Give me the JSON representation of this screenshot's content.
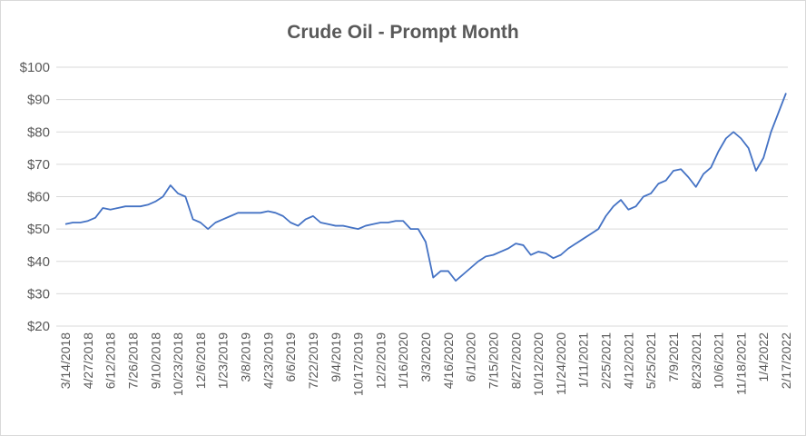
{
  "chart_data": {
    "type": "line",
    "title": "Crude Oil - Prompt Month",
    "categories": [
      "3/14/2018",
      null,
      null,
      "4/27/2018",
      null,
      null,
      "6/12/2018",
      null,
      null,
      "7/26/2018",
      null,
      null,
      "9/10/2018",
      null,
      null,
      "10/23/2018",
      null,
      null,
      "12/6/2018",
      null,
      null,
      "1/23/2019",
      null,
      null,
      "3/8/2019",
      null,
      null,
      "4/23/2019",
      null,
      null,
      "6/6/2019",
      null,
      null,
      "7/22/2019",
      null,
      null,
      "9/4/2019",
      null,
      null,
      "10/17/2019",
      null,
      null,
      "12/2/2019",
      null,
      null,
      "1/16/2020",
      null,
      null,
      "3/3/2020",
      null,
      null,
      "4/16/2020",
      null,
      null,
      "6/1/2020",
      null,
      null,
      "7/15/2020",
      null,
      null,
      "8/27/2020",
      null,
      null,
      "10/12/2020",
      null,
      null,
      "11/24/2020",
      null,
      null,
      "1/11/2021",
      null,
      null,
      "2/25/2021",
      null,
      null,
      "4/12/2021",
      null,
      null,
      "5/25/2021",
      null,
      null,
      "7/9/2021",
      null,
      null,
      "8/23/2021",
      null,
      null,
      "10/6/2021",
      null,
      null,
      "11/18/2021",
      null,
      null,
      "1/4/2022",
      null,
      null,
      "2/17/2022"
    ],
    "series": [
      {
        "name": "Crude Oil",
        "color": "#4472c4",
        "values": [
          51.5,
          52,
          52,
          52.5,
          53.5,
          56.5,
          56,
          56.5,
          57,
          57,
          57,
          57.5,
          58.5,
          60,
          63.5,
          61,
          60,
          53,
          52,
          50,
          52,
          53,
          54,
          55,
          55,
          55,
          55,
          55.5,
          55,
          54,
          52,
          51,
          53,
          54,
          52,
          51.5,
          51,
          51,
          50.5,
          50,
          51,
          51.5,
          52,
          52,
          52.5,
          52.5,
          50,
          50,
          46,
          35,
          37,
          37,
          34,
          36,
          38,
          40,
          41.5,
          42,
          43,
          44,
          45.5,
          45,
          42,
          43,
          42.5,
          41,
          42,
          44,
          45.5,
          47,
          48.5,
          50,
          54,
          57,
          59,
          56,
          57,
          60,
          61,
          64,
          65,
          68,
          68.5,
          66,
          63,
          67,
          69,
          74,
          78,
          80,
          78,
          75,
          68,
          72,
          80,
          86,
          92
        ]
      }
    ],
    "ylim": [
      20,
      100
    ],
    "yticks": [
      {
        "value": 20,
        "label": "$20"
      },
      {
        "value": 30,
        "label": "$30"
      },
      {
        "value": 40,
        "label": "$40"
      },
      {
        "value": 50,
        "label": "$50"
      },
      {
        "value": 60,
        "label": "$60"
      },
      {
        "value": 70,
        "label": "$70"
      },
      {
        "value": 80,
        "label": "$80"
      },
      {
        "value": 90,
        "label": "$90"
      },
      {
        "value": 100,
        "label": "$100"
      }
    ],
    "grid": true
  }
}
